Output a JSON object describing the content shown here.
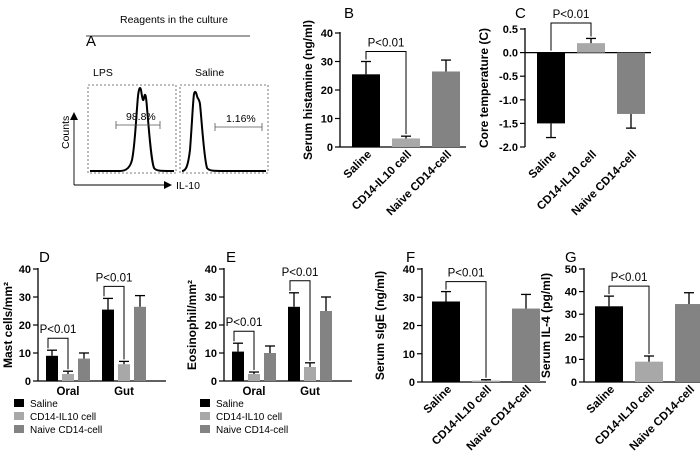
{
  "colors": {
    "saline": "#000000",
    "il10": "#a8a8a8",
    "naive": "#838383"
  },
  "flow": {
    "letter": "A",
    "title": "Reagents in the culture",
    "ylabel": "Counts",
    "xlabel": "IL-10",
    "panels": [
      {
        "name": "LPS",
        "percent": "98.8%"
      },
      {
        "name": "Saline",
        "percent": "1.16%"
      }
    ]
  },
  "chart_data": [
    {
      "id": "B",
      "type": "bar",
      "letter": "B",
      "ylabel": "Serum histamine (ng/ml)",
      "categories": [
        "Saline",
        "CD14-IL10 cell",
        "Naive CD14-cell"
      ],
      "values": [
        25.5,
        3.0,
        26.5
      ],
      "errors": [
        4.5,
        0.8,
        4.0
      ],
      "ylim": [
        0,
        40
      ],
      "yticks": [
        0,
        10,
        20,
        30,
        40
      ],
      "annotations": [
        {
          "text": "P<0.01",
          "from": 0,
          "to": 1
        }
      ]
    },
    {
      "id": "C",
      "type": "bar",
      "letter": "C",
      "ylabel": "Core temperature (C)",
      "categories": [
        "Saline",
        "CD14-IL10 cell",
        "Naive CD14-cell"
      ],
      "values": [
        -1.5,
        0.2,
        -1.3
      ],
      "errors": [
        0.3,
        0.1,
        0.3
      ],
      "ylim": [
        -2.0,
        0.5
      ],
      "yticks": [
        "-2.0",
        "-1.5",
        "-1.0",
        "-0.5",
        "0.0",
        "0.5"
      ],
      "annotations": [
        {
          "text": "P<0.01",
          "from": 0,
          "to": 1
        }
      ]
    },
    {
      "id": "D",
      "type": "bar",
      "letter": "D",
      "ylabel": "Mast cells/mm²",
      "groups": [
        "Oral",
        "Gut"
      ],
      "series": [
        {
          "name": "Saline",
          "values": [
            9,
            25.5
          ],
          "errors": [
            2,
            4
          ]
        },
        {
          "name": "CD14-IL10 cell",
          "values": [
            2.5,
            6
          ],
          "errors": [
            1,
            1
          ]
        },
        {
          "name": "Naive CD14-cell",
          "values": [
            8,
            26.5
          ],
          "errors": [
            2,
            4
          ]
        }
      ],
      "ylim": [
        0,
        40
      ],
      "yticks": [
        0,
        10,
        20,
        30,
        40
      ],
      "annotations": [
        {
          "text": "P<0.01",
          "group": 0,
          "from": 0,
          "to": 1
        },
        {
          "text": "P<0.01",
          "group": 1,
          "from": 0,
          "to": 1
        }
      ]
    },
    {
      "id": "E",
      "type": "bar",
      "letter": "E",
      "ylabel": "Eosinophil/mm²",
      "groups": [
        "Oral",
        "Gut"
      ],
      "series": [
        {
          "name": "Saline",
          "values": [
            10.5,
            26.5
          ],
          "errors": [
            3,
            5
          ]
        },
        {
          "name": "CD14-IL10 cell",
          "values": [
            2.5,
            5
          ],
          "errors": [
            0.7,
            1.5
          ]
        },
        {
          "name": "Naive CD14-cell",
          "values": [
            10,
            25
          ],
          "errors": [
            2.5,
            5
          ]
        }
      ],
      "ylim": [
        0,
        40
      ],
      "yticks": [
        0,
        10,
        20,
        30,
        40
      ],
      "annotations": [
        {
          "text": "P<0.01",
          "group": 0,
          "from": 0,
          "to": 1
        },
        {
          "text": "P<0.01",
          "group": 1,
          "from": 0,
          "to": 1
        }
      ]
    },
    {
      "id": "F",
      "type": "bar",
      "letter": "F",
      "ylabel": "Serum sIgE (ng/ml)",
      "categories": [
        "Saline",
        "CD14-IL10 cell",
        "Naive CD14-cell"
      ],
      "values": [
        28.5,
        0.5,
        26
      ],
      "errors": [
        3.5,
        0.3,
        5
      ],
      "ylim": [
        0,
        40
      ],
      "yticks": [
        0,
        10,
        20,
        30,
        40
      ],
      "annotations": [
        {
          "text": "P<0.01",
          "from": 0,
          "to": 1
        }
      ]
    },
    {
      "id": "G",
      "type": "bar",
      "letter": "G",
      "ylabel": "Serum IL-4 (pg/ml)",
      "categories": [
        "Saline",
        "CD14-IL10 cell",
        "Naive CD14-cell"
      ],
      "values": [
        33.5,
        9,
        34.5
      ],
      "errors": [
        4.5,
        2.5,
        5
      ],
      "ylim": [
        0,
        50
      ],
      "yticks": [
        0,
        10,
        20,
        30,
        40,
        50
      ],
      "annotations": [
        {
          "text": "P<0.01",
          "from": 0,
          "to": 1
        }
      ]
    }
  ]
}
